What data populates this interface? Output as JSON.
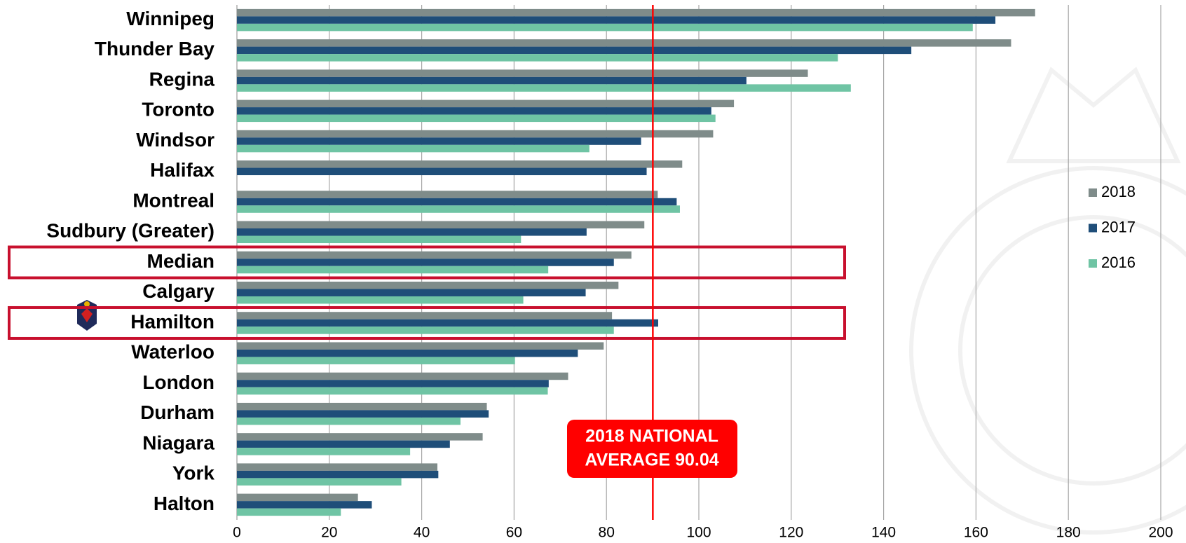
{
  "chart_data": {
    "type": "bar",
    "orientation": "horizontal",
    "categories": [
      "Winnipeg",
      "Thunder Bay",
      "Regina",
      "Toronto",
      "Windsor",
      "Halifax",
      "Montreal",
      "Sudbury (Greater)",
      "Median",
      "Calgary",
      "Hamilton",
      "Waterloo",
      "London",
      "Durham",
      "Niagara",
      "York",
      "Halton"
    ],
    "series": [
      {
        "name": "2018",
        "color": "#7f8c8a",
        "values": [
          172.8,
          167.6,
          123.6,
          107.6,
          103.1,
          96.4,
          91.1,
          88.2,
          85.4,
          82.6,
          81.2,
          79.4,
          71.7,
          54.1,
          53.2,
          43.4,
          26.2
        ]
      },
      {
        "name": "2017",
        "color": "#1f4e79",
        "values": [
          164.2,
          146.0,
          110.3,
          102.7,
          87.5,
          88.7,
          95.2,
          75.7,
          81.6,
          75.5,
          91.2,
          73.8,
          67.5,
          54.5,
          46.1,
          43.6,
          29.2
        ]
      },
      {
        "name": "2016",
        "color": "#6fc4a4",
        "values": [
          159.3,
          130.1,
          132.9,
          103.6,
          76.3,
          null,
          95.9,
          61.5,
          67.4,
          62.0,
          81.6,
          60.2,
          67.3,
          48.4,
          37.5,
          35.6,
          22.5
        ]
      }
    ],
    "xlim": [
      0,
      200
    ],
    "xticks": [
      0,
      20,
      40,
      60,
      80,
      100,
      120,
      140,
      160,
      180,
      200
    ],
    "grid": true,
    "legend": "right",
    "reference_line": {
      "value": 90.04,
      "color": "#ff0000",
      "label_lines": [
        "2018 NATIONAL",
        "AVERAGE 90.04"
      ]
    },
    "highlight": [
      8,
      10
    ]
  }
}
